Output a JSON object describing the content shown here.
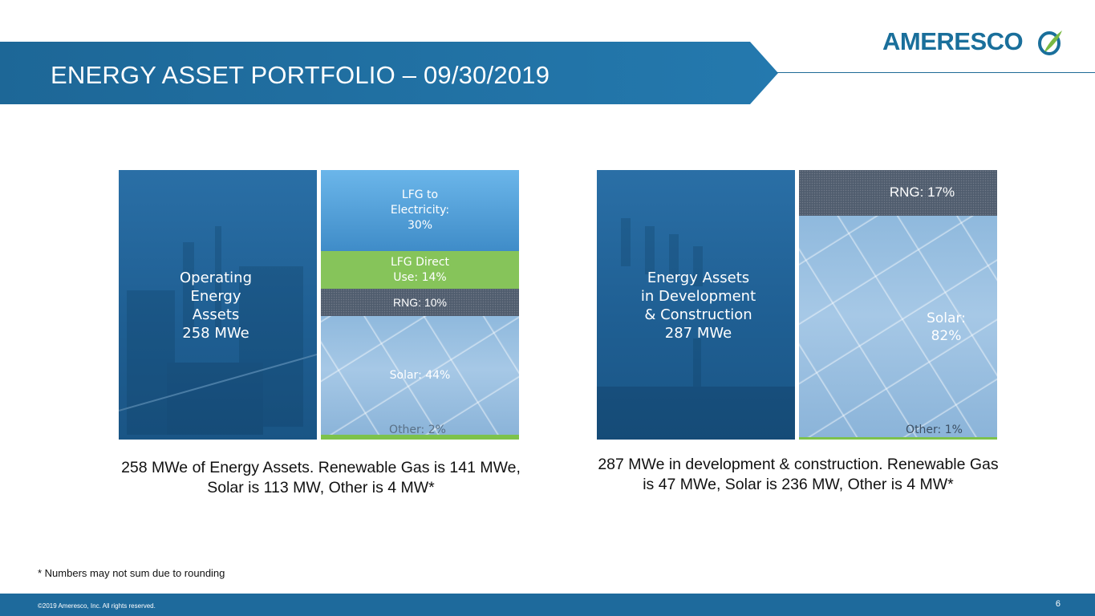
{
  "header": {
    "title": "ENERGY ASSET PORTFOLIO – 09/30/2019",
    "logo_text": "AMERESCO",
    "colors": {
      "banner": "#1f6a9c",
      "banner_edge": "#2a7fb3"
    }
  },
  "panels": {
    "operating": {
      "label": "Operating\nEnergy\nAssets\n258 MWe",
      "caption": "258 MWe of Energy Assets. Renewable Gas is 141 MWe, Solar is 113 MW, Other is 4 MW*"
    },
    "development": {
      "label": "Energy Assets\nin Development\n& Construction\n287 MWe",
      "caption": "287 MWe in development & construction. Renewable Gas is 47 MWe, Solar is 236 MW, Other is 4 MW*"
    }
  },
  "chart_data": [
    {
      "type": "bar",
      "stacked": true,
      "series": [
        {
          "name": "LFG to Electricity",
          "label": "LFG to\nElectricity:\n30%",
          "value": 30,
          "color": "#3f8cc8"
        },
        {
          "name": "LFG Direct Use",
          "label": "LFG Direct\nUse: 14%",
          "value": 14,
          "color": "#86c45a"
        },
        {
          "name": "RNG",
          "label": "RNG: 10%",
          "value": 10,
          "color": "#505d6e"
        },
        {
          "name": "Solar",
          "label": "Solar: 44%",
          "value": 44,
          "color": "#9fc3e3"
        },
        {
          "name": "Other",
          "label": "Other: 2%",
          "value": 2,
          "color": "#7dc24b"
        }
      ]
    },
    {
      "type": "bar",
      "stacked": true,
      "series": [
        {
          "name": "RNG",
          "label": "RNG: 17%",
          "value": 17,
          "color": "#505d6e"
        },
        {
          "name": "Solar",
          "label": "Solar:\n82%",
          "value": 82,
          "color": "#9fc3e3"
        },
        {
          "name": "Other",
          "label": "Other: 1%",
          "value": 1,
          "color": "#7dc24b"
        }
      ]
    }
  ],
  "footnote": "* Numbers may not sum due to rounding",
  "footer": {
    "copyright": "©2019 Ameresco, Inc. All rights reserved.",
    "page_number": "6"
  }
}
